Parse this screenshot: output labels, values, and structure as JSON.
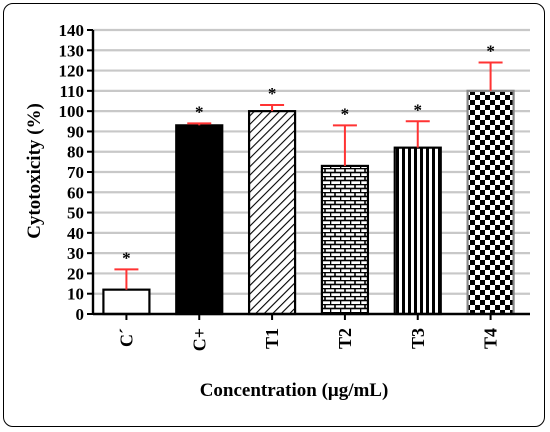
{
  "chart_data": {
    "type": "bar",
    "xlabel": "Concentration (μg/mL)",
    "ylabel": "Cytotoxicity (%)",
    "ylim": [
      0,
      140
    ],
    "ytick_step": 10,
    "grid": "horizontal",
    "categories": [
      "C´",
      "C+",
      "T1",
      "T2",
      "T3",
      "T4"
    ],
    "values": [
      12,
      93,
      100,
      73,
      82,
      110
    ],
    "errors": [
      10,
      1,
      3,
      20,
      13,
      14
    ],
    "significance": [
      "*",
      "*",
      "*",
      "*",
      "*",
      "*"
    ],
    "patterns": [
      "none",
      "solid",
      "diagonal",
      "brick",
      "vertical",
      "checker"
    ],
    "colors": {
      "bar_outline": "#000000",
      "error_bar": "#ff3333",
      "grid": "#c8c8c8",
      "t4_outline": "#888888"
    }
  }
}
